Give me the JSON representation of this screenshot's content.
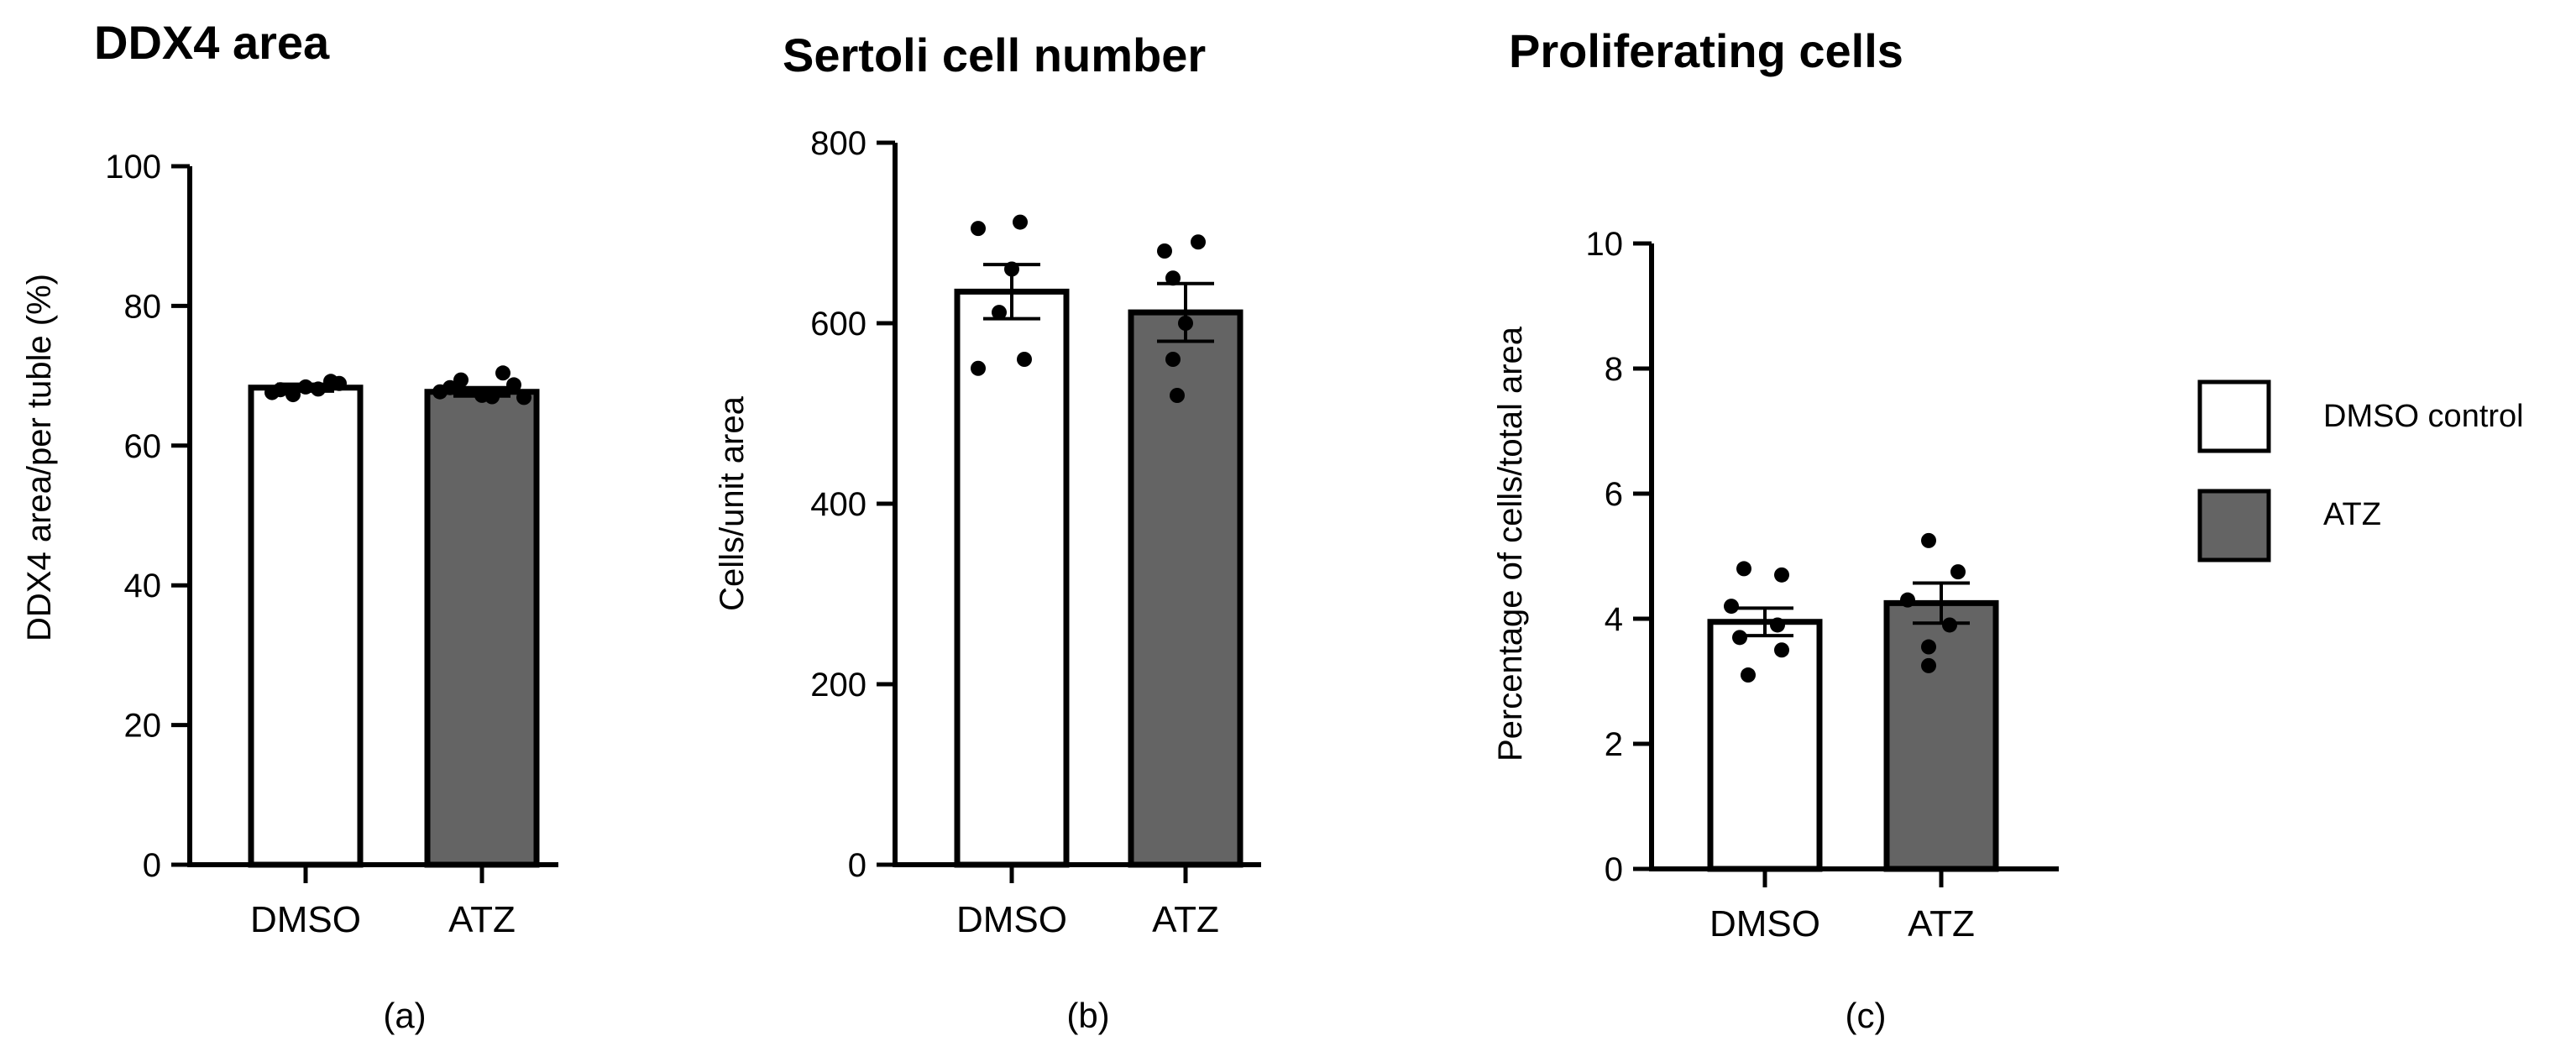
{
  "colors": {
    "dmso": "#ffffff",
    "atz": "#646464",
    "stroke": "#000000",
    "point": "#000000"
  },
  "legend": {
    "items": [
      {
        "label": "DMSO control",
        "color": "#ffffff"
      },
      {
        "label": "ATZ",
        "color": "#646464"
      }
    ]
  },
  "chart_data": [
    {
      "type": "bar",
      "panel_label": "(a)",
      "title": "DDX4 area",
      "xlabel": "",
      "ylabel": "DDX4 area/per tuble (%)",
      "ylim": [
        0,
        100
      ],
      "yticks": [
        0,
        20,
        40,
        60,
        80,
        100
      ],
      "categories": [
        "DMSO",
        "ATZ"
      ],
      "values": [
        68.3,
        67.7
      ],
      "errors": [
        0.5,
        0.6
      ],
      "points": [
        [
          68.0,
          68.4,
          69.2,
          67.6,
          68.9,
          67.3,
          68.1
        ],
        [
          67.7,
          69.4,
          67.2,
          70.4,
          66.9,
          68.3,
          67.0,
          68.7
        ]
      ],
      "grid": false
    },
    {
      "type": "bar",
      "panel_label": "(b)",
      "title": "Sertoli cell number",
      "xlabel": "",
      "ylabel": "Cells/unit area",
      "ylim": [
        0,
        800
      ],
      "yticks": [
        0,
        200,
        400,
        600,
        800
      ],
      "categories": [
        "DMSO",
        "ATZ"
      ],
      "values": [
        635,
        612
      ],
      "errors": [
        30,
        32
      ],
      "points": [
        [
          705,
          712,
          660,
          612,
          550,
          560
        ],
        [
          680,
          690,
          650,
          600,
          560,
          520
        ]
      ],
      "grid": false
    },
    {
      "type": "bar",
      "panel_label": "(c)",
      "title": "Proliferating cells",
      "xlabel": "",
      "ylabel": "Percentage of cells/total area",
      "ylim": [
        0,
        10
      ],
      "yticks": [
        0,
        2,
        4,
        6,
        8,
        10
      ],
      "categories": [
        "DMSO",
        "ATZ"
      ],
      "values": [
        3.95,
        4.25
      ],
      "errors": [
        0.22,
        0.32
      ],
      "points": [
        [
          4.8,
          4.7,
          4.2,
          3.9,
          3.7,
          3.5,
          3.1
        ],
        [
          5.25,
          4.75,
          4.3,
          3.9,
          3.55,
          3.25
        ]
      ],
      "grid": false
    }
  ]
}
